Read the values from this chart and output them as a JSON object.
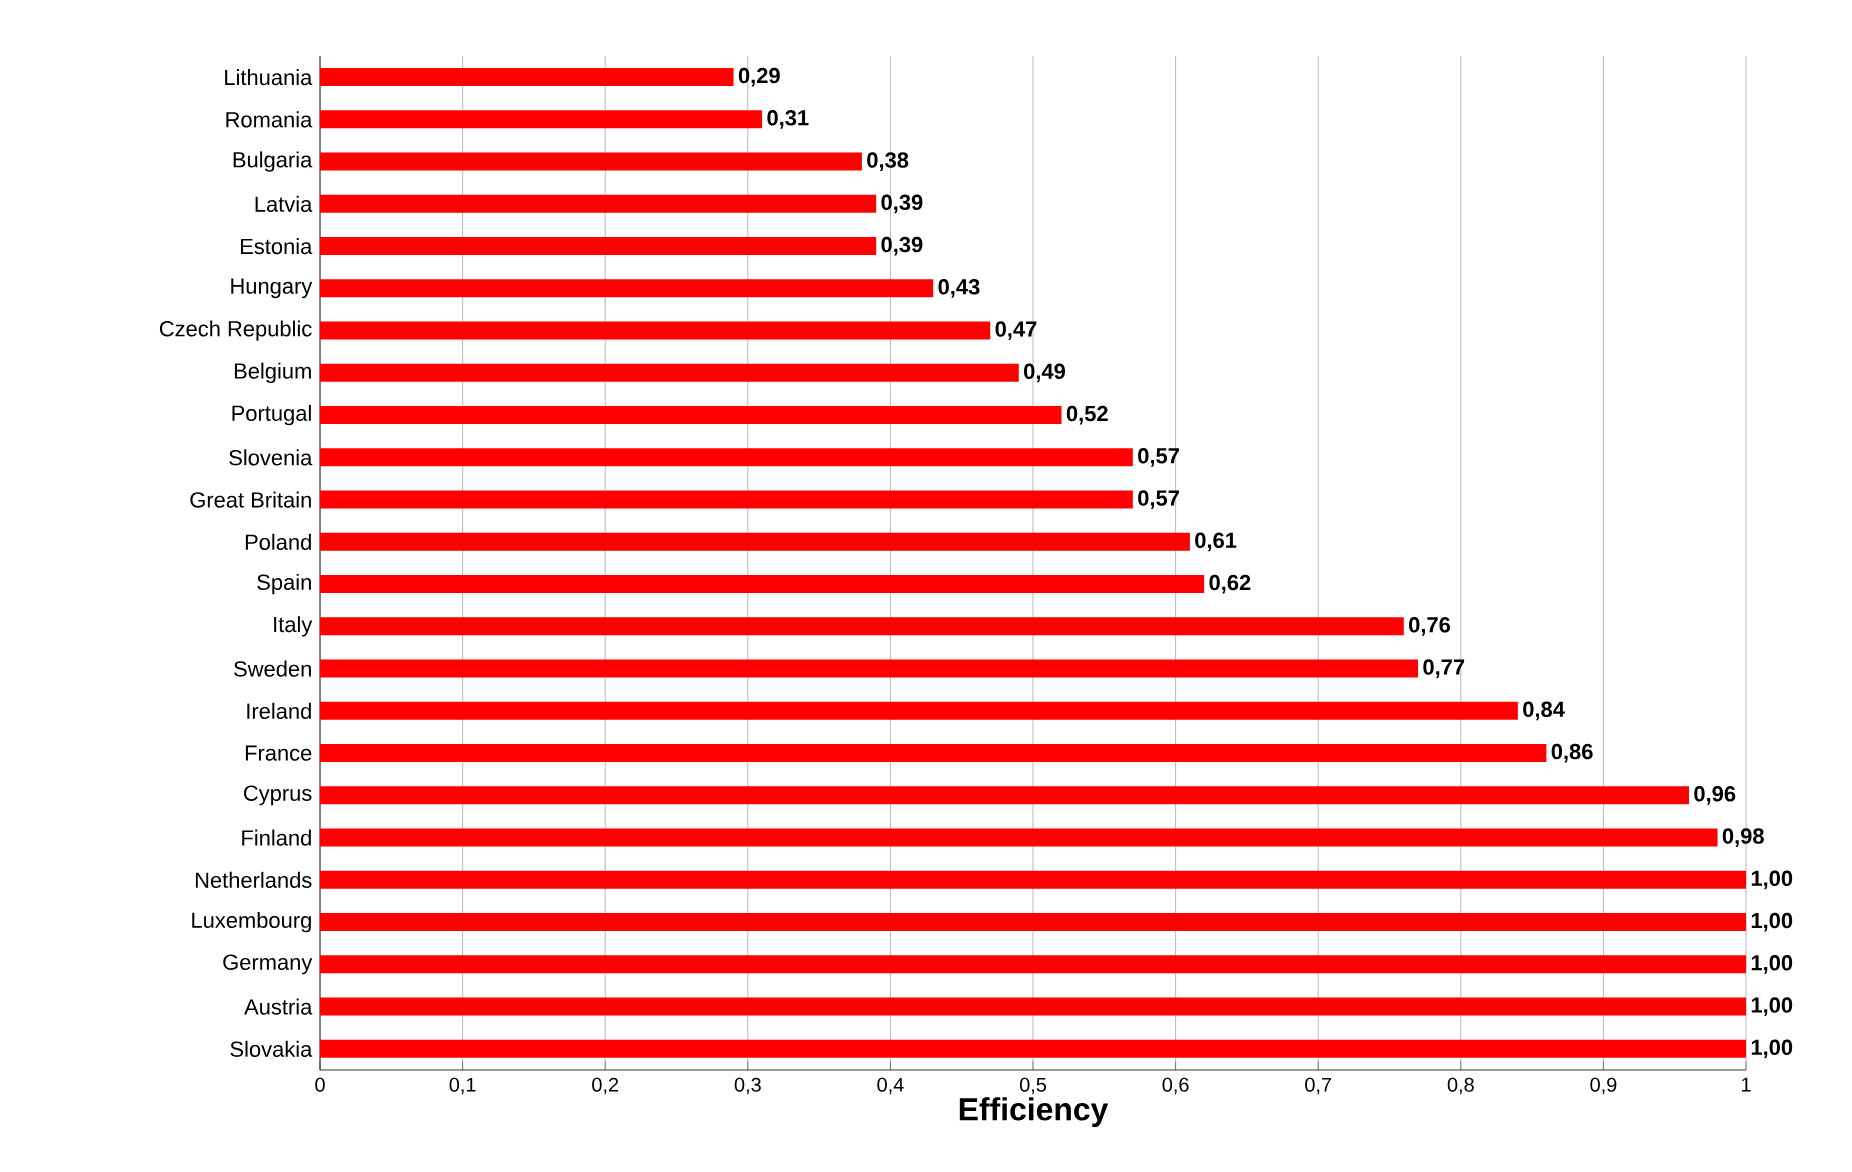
{
  "chart_data": {
    "type": "bar",
    "orientation": "horizontal",
    "xlabel": "Efficiency",
    "color": "#ff0000",
    "categories": [
      "Lithuania",
      "Romania",
      "Bulgaria",
      "Latvia",
      "Estonia",
      "Hungary",
      "Czech Republic",
      "Belgium",
      "Portugal",
      "Slovenia",
      "Great Britain",
      "Poland",
      "Spain",
      "Italy",
      "Sweden",
      "Ireland",
      "France",
      "Cyprus",
      "Finland",
      "Netherlands",
      "Luxembourg",
      "Germany",
      "Austria",
      "Slovakia"
    ],
    "values": [
      0.29,
      0.31,
      0.38,
      0.39,
      0.39,
      0.43,
      0.47,
      0.49,
      0.52,
      0.57,
      0.57,
      0.61,
      0.62,
      0.76,
      0.77,
      0.84,
      0.86,
      0.96,
      0.98,
      1.0,
      1.0,
      1.0,
      1.0,
      1.0
    ],
    "value_labels": [
      "0,29",
      "0,31",
      "0,38",
      "0,39",
      "0,39",
      "0,43",
      "0,47",
      "0,49",
      "0,52",
      "0,57",
      "0,57",
      "0,61",
      "0,62",
      "0,76",
      "0,77",
      "0,84",
      "0,86",
      "0,96",
      "0,98",
      "1,00",
      "1,00",
      "1,00",
      "1,00",
      "1,00"
    ],
    "xlim": [
      0,
      1
    ],
    "xticks": [
      0,
      {
        "value": 0.1,
        "label": "0,1"
      },
      {
        "value": 0.2,
        "label": "0,2"
      },
      {
        "value": 0.3,
        "label": "0,3"
      },
      {
        "value": 0.4,
        "label": "0,4"
      },
      {
        "value": 0.5,
        "label": "0,5"
      },
      {
        "value": 0.6,
        "label": "0,6"
      },
      {
        "value": 0.7,
        "label": "0,7"
      },
      {
        "value": 0.8,
        "label": "0,8"
      },
      {
        "value": 0.9,
        "label": "0,9"
      },
      1
    ],
    "grid": "x"
  }
}
